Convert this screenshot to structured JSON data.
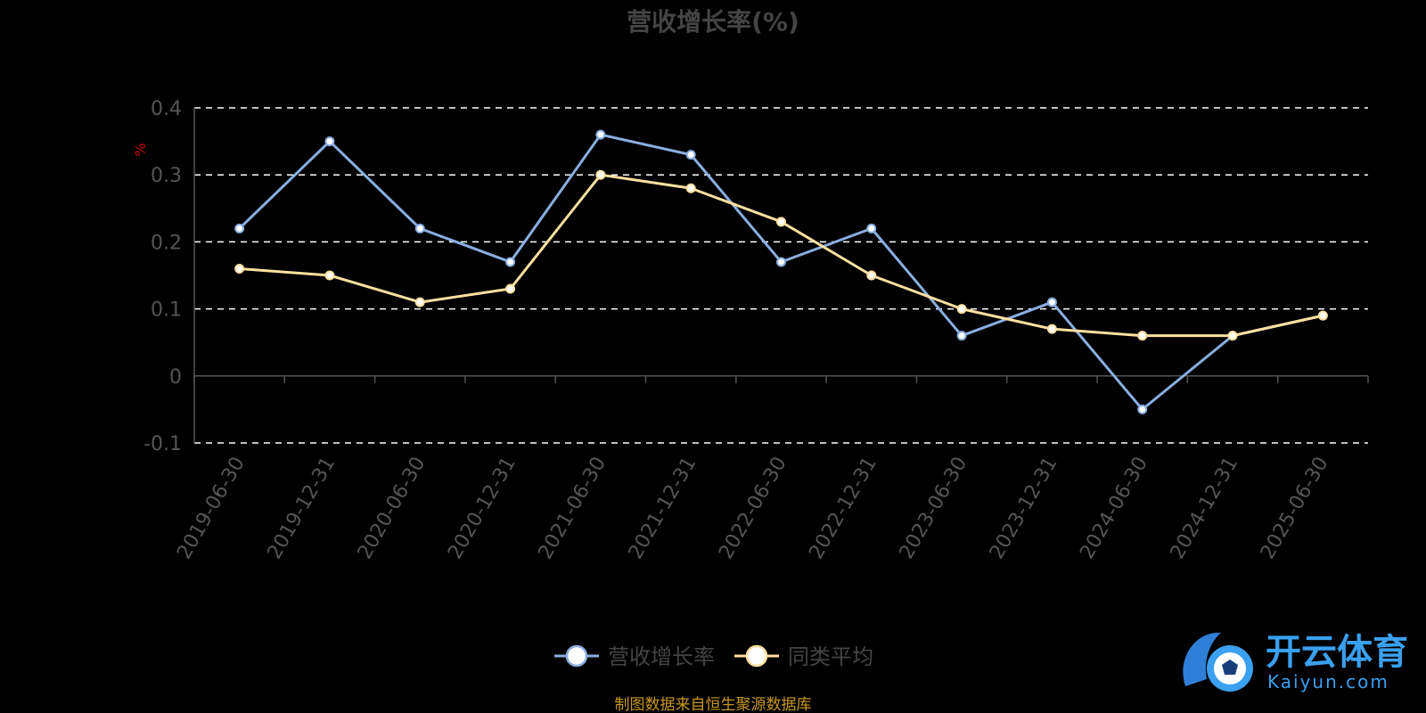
{
  "chart_data": {
    "type": "line",
    "title": "营收增长率(%)",
    "ylabel": "%",
    "ylim": [
      -0.1,
      0.4
    ],
    "yticks": [
      "0.4",
      "0.3",
      "0.2",
      "0.1",
      "0",
      "-0.1"
    ],
    "ytick_values": [
      0.4,
      0.3,
      0.2,
      0.1,
      0,
      -0.1
    ],
    "categories": [
      "2019-06-30",
      "2019-12-31",
      "2020-06-30",
      "2020-12-31",
      "2021-06-30",
      "2021-12-31",
      "2022-06-30",
      "2022-12-31",
      "2023-06-30",
      "2023-12-31",
      "2024-06-30",
      "2024-12-31",
      "2025-06-30"
    ],
    "series": [
      {
        "name": "营收增长率",
        "color": "#8aaee0",
        "values": [
          0.22,
          0.35,
          0.22,
          0.17,
          0.36,
          0.33,
          0.17,
          0.22,
          0.06,
          0.11,
          -0.05,
          0.06,
          0.09
        ]
      },
      {
        "name": "同类平均",
        "color": "#ffe0a0",
        "values": [
          0.16,
          0.15,
          0.11,
          0.13,
          0.3,
          0.28,
          0.23,
          0.15,
          0.1,
          0.07,
          0.06,
          0.06,
          0.09
        ]
      }
    ],
    "grid": true,
    "legend_position": "bottom-center"
  },
  "source_note": "制图数据来自恒生聚源数据库",
  "watermark": {
    "cn": "开云体育",
    "en": "Kaiyun.com",
    "color": "#3aa0f0"
  }
}
